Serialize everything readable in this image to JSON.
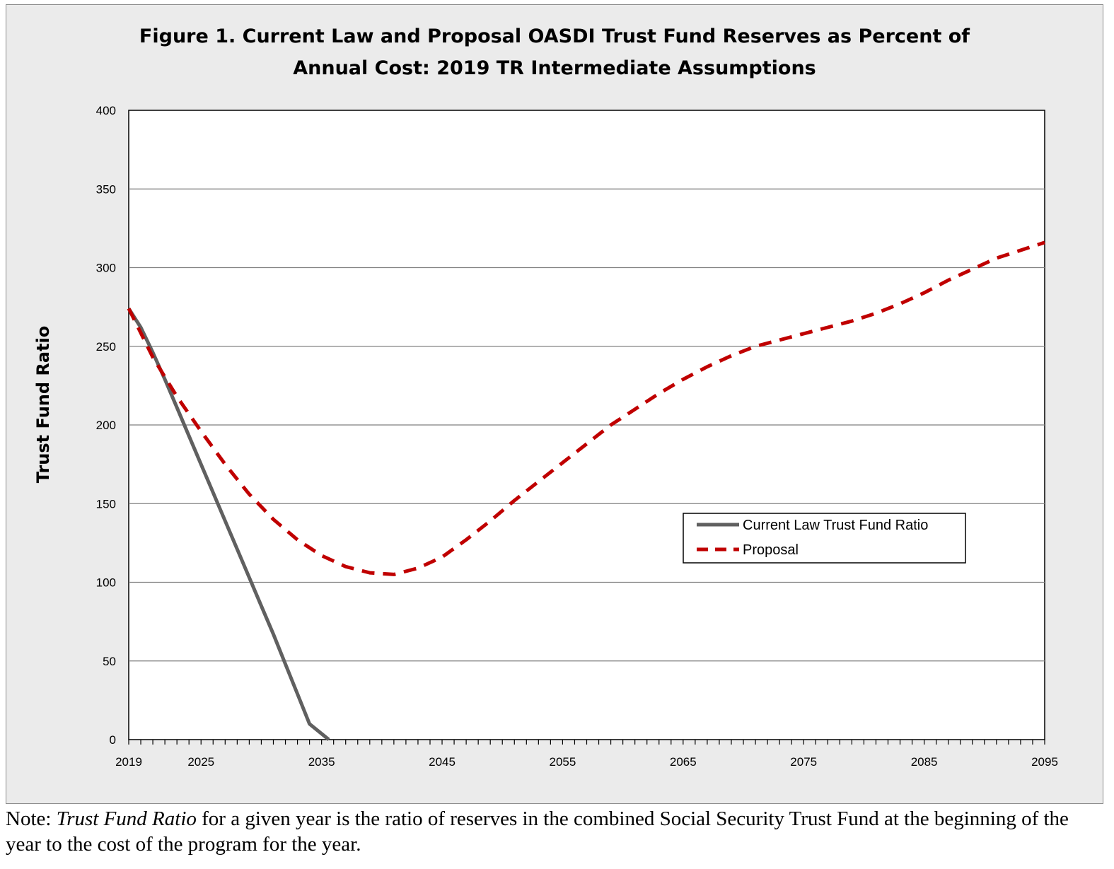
{
  "chart_data": {
    "type": "line",
    "title": "Figure 1. Current Law and Proposal OASDI Trust Fund Reserves as Percent of Annual Cost: 2019 TR Intermediate Assumptions",
    "title_lines": [
      "Figure 1. Current Law and Proposal OASDI Trust Fund Reserves as Percent of",
      "Annual Cost: 2019 TR Intermediate Assumptions"
    ],
    "xlabel": "",
    "ylabel": "Trust Fund Ratio",
    "xlim": [
      2019,
      2095
    ],
    "ylim": [
      0,
      400
    ],
    "x_ticks": [
      2019,
      2025,
      2035,
      2045,
      2055,
      2065,
      2075,
      2085,
      2095
    ],
    "y_ticks": [
      0,
      50,
      100,
      150,
      200,
      250,
      300,
      350,
      400
    ],
    "grid": true,
    "legend_position": "center-right",
    "series": [
      {
        "name": "Current Law Trust Fund Ratio",
        "color": "#606060",
        "style": "solid",
        "x": [
          2019,
          2020,
          2021,
          2022,
          2023,
          2024,
          2025,
          2026,
          2027,
          2028,
          2029,
          2030,
          2031,
          2032,
          2033,
          2034,
          2035.6
        ],
        "y": [
          274,
          262,
          246,
          229,
          211,
          193,
          175,
          157,
          139,
          121,
          103,
          85,
          67,
          48,
          29,
          10,
          0
        ]
      },
      {
        "name": "Proposal",
        "color": "#c00000",
        "style": "dashed",
        "x": [
          2019,
          2021,
          2023,
          2025,
          2027,
          2029,
          2031,
          2033,
          2035,
          2037,
          2039,
          2041,
          2043,
          2045,
          2047,
          2049,
          2051,
          2053,
          2055,
          2057,
          2059,
          2061,
          2063,
          2065,
          2067,
          2069,
          2071,
          2073,
          2075,
          2077,
          2079,
          2081,
          2083,
          2085,
          2087,
          2089,
          2091,
          2093,
          2095
        ],
        "y": [
          274,
          243,
          218,
          196,
          175,
          156,
          140,
          127,
          117,
          110,
          106,
          105,
          109,
          116,
          127,
          139,
          152,
          164,
          176,
          188,
          200,
          210,
          220,
          229,
          237,
          244,
          250,
          254,
          258,
          262,
          266,
          271,
          277,
          284,
          292,
          299,
          306,
          311,
          316
        ]
      }
    ]
  },
  "note": {
    "prefix": "Note: ",
    "term": "Trust Fund Ratio",
    "rest": " for a given year is the ratio of reserves in the combined Social Security Trust Fund at the beginning of the year to the cost of the program for the year."
  }
}
